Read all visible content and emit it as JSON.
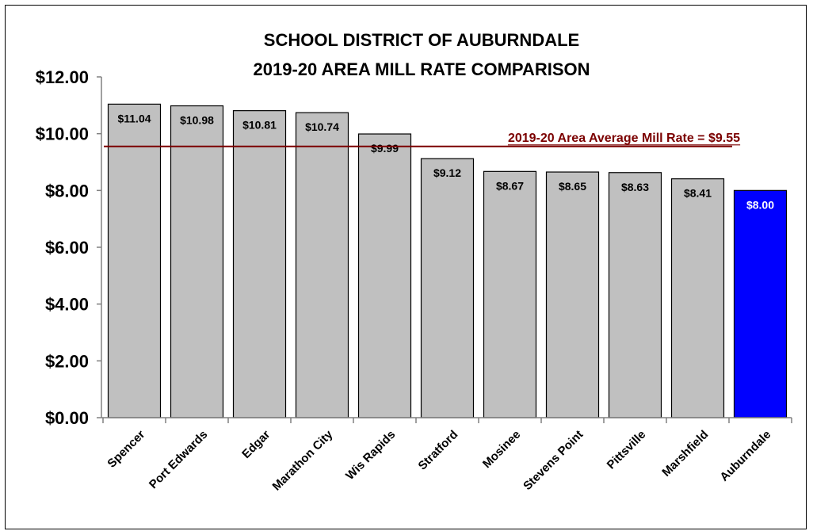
{
  "chart_data": {
    "type": "bar",
    "title_lines": [
      "SCHOOL DISTRICT OF AUBURNDALE",
      "2019-20 AREA MILL RATE COMPARISON"
    ],
    "categories": [
      "Spencer",
      "Port Edwards",
      "Edgar",
      "Marathon City",
      "Wis Rapids",
      "Stratford",
      "Mosinee",
      "Stevens Point",
      "Pittsville",
      "Marshfield",
      "Auburndale"
    ],
    "values": [
      11.04,
      10.98,
      10.81,
      10.74,
      9.99,
      9.12,
      8.67,
      8.65,
      8.63,
      8.41,
      8.0
    ],
    "data_labels": [
      "$11.04",
      "$10.98",
      "$10.81",
      "$10.74",
      "$9.99",
      "$9.12",
      "$8.67",
      "$8.65",
      "$8.63",
      "$8.41",
      "$8.00"
    ],
    "ylim": [
      0,
      12
    ],
    "y_ticks": [
      0,
      2,
      4,
      6,
      8,
      10,
      12
    ],
    "y_tick_labels": [
      "$0.00",
      "$2.00",
      "$4.00",
      "$6.00",
      "$8.00",
      "$10.00",
      "$12.00"
    ],
    "xlabel": "",
    "ylabel": "",
    "grid": false,
    "highlight_category": "Auburndale",
    "colors": {
      "bar": "#c0c0c0",
      "bar_highlight": "#0000ff",
      "bar_outline": "#000000",
      "label_on_highlight": "#ffffff",
      "average_line": "#7b0000"
    },
    "reference_line": {
      "value": 9.55,
      "label": "2019-20 Area Average Mill Rate = $9.55"
    }
  }
}
